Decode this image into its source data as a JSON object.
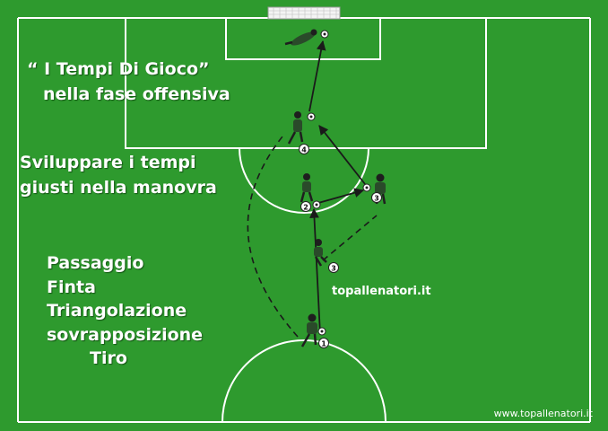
{
  "heading": {
    "line1": "“ I Tempi Di Gioco”",
    "line2": "nella fase offensiva",
    "line3": "Sviluppare i tempi",
    "line4": "giusti nella manovra"
  },
  "concepts": [
    "Passaggio",
    "Finta",
    "Triangolazione",
    "sovrapposizione",
    "Tiro"
  ],
  "brand_label": "topallenatori.it",
  "credit_label": "www.topallenatori.it",
  "player_numbers": {
    "p1": "1",
    "p2": "2",
    "p3_top": "3",
    "p3_mid": "3",
    "p4": "4"
  },
  "colors": {
    "pitch": "#2e9a2e",
    "lines": "#ffffff",
    "kit": "#2a4a2a",
    "text": "#ffffff"
  },
  "icons": [
    "goal-icon",
    "player-icon",
    "ball-icon",
    "goalkeeper-icon"
  ]
}
